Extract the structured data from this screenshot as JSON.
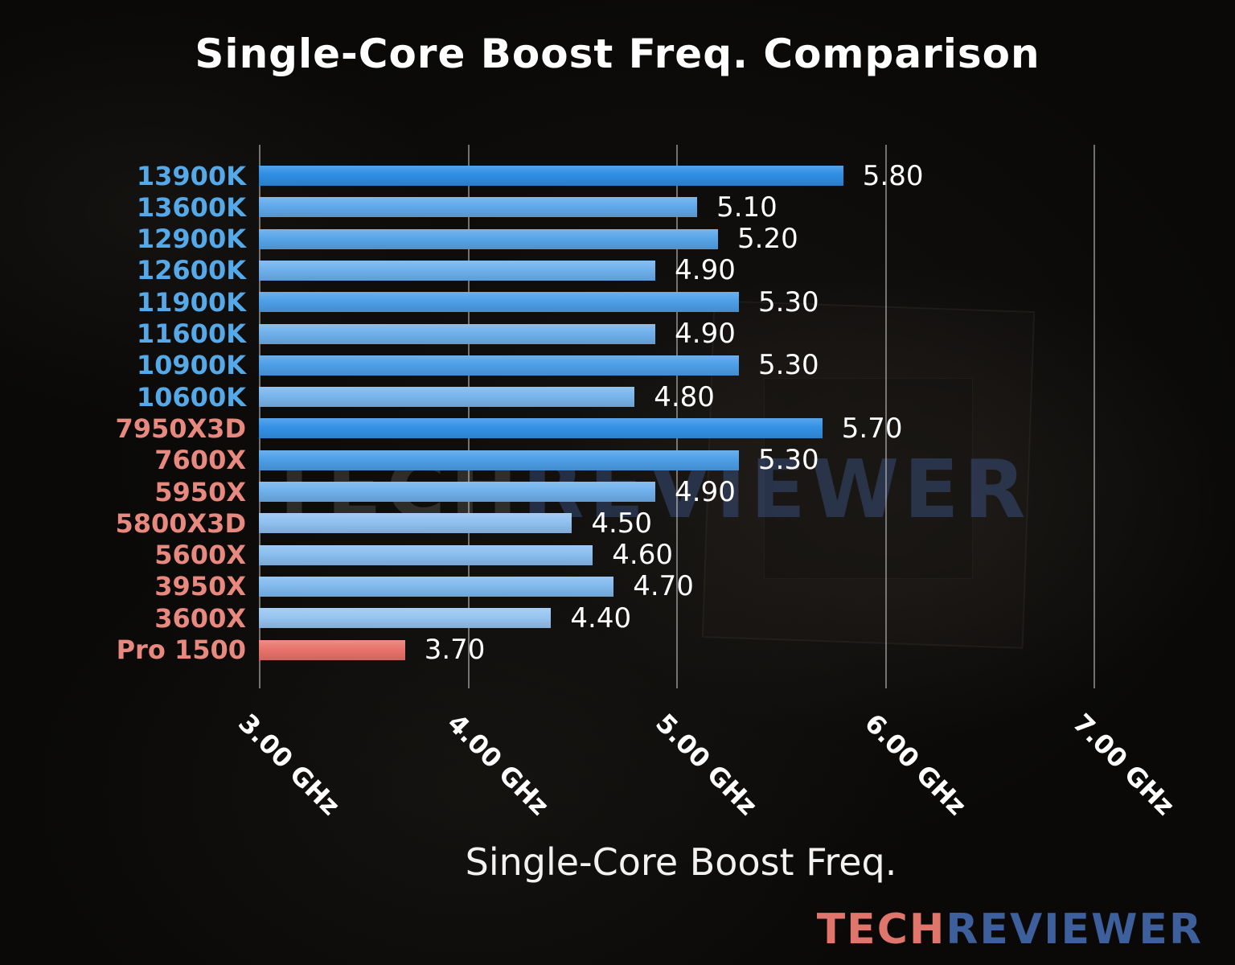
{
  "title": "Single-Core Boost Freq. Comparison",
  "chart_data": {
    "type": "bar",
    "orientation": "horizontal",
    "title": "Single-Core Boost Freq. Comparison",
    "xlabel": "Single-Core Boost Freq.",
    "ylabel": "",
    "xlim": [
      3.0,
      7.5
    ],
    "grid": true,
    "x_ticks": [
      {
        "value": 3.0,
        "label": "3.00 GHz"
      },
      {
        "value": 4.0,
        "label": "4.00 GHz"
      },
      {
        "value": 5.0,
        "label": "5.00 GHz"
      },
      {
        "value": 6.0,
        "label": "6.00 GHz"
      },
      {
        "value": 7.0,
        "label": "7.00 GHz"
      }
    ],
    "categories": [
      "13900K",
      "13600K",
      "12900K",
      "12600K",
      "11900K",
      "11600K",
      "10900K",
      "10600K",
      "7950X3D",
      "7600X",
      "5950X",
      "5800X3D",
      "5600X",
      "3950X",
      "3600X",
      "Pro 1500"
    ],
    "values": [
      5.8,
      5.1,
      5.2,
      4.9,
      5.3,
      4.9,
      5.3,
      4.8,
      5.7,
      5.3,
      4.9,
      4.5,
      4.6,
      4.7,
      4.4,
      3.7
    ],
    "value_labels": [
      "5.80",
      "5.10",
      "5.20",
      "4.90",
      "5.30",
      "4.90",
      "5.30",
      "4.80",
      "5.70",
      "5.30",
      "4.90",
      "4.50",
      "4.60",
      "4.70",
      "4.40",
      "3.70"
    ],
    "label_colors": [
      "#56a9e8",
      "#56a9e8",
      "#56a9e8",
      "#56a9e8",
      "#56a9e8",
      "#56a9e8",
      "#56a9e8",
      "#56a9e8",
      "#e8897f",
      "#e8897f",
      "#e8897f",
      "#e8897f",
      "#e8897f",
      "#e8897f",
      "#e8897f",
      "#e8897f"
    ],
    "bar_colors": [
      "#2e8ee5",
      "#60a9ea",
      "#58a5e9",
      "#6fb1ec",
      "#4d9fe8",
      "#6fb1ec",
      "#4d9fe8",
      "#79b6ed",
      "#3492e6",
      "#4d9fe8",
      "#6fb1ec",
      "#90c1f0",
      "#8abeef",
      "#82baee",
      "#97c5f0",
      "#e8746c"
    ]
  },
  "watermark_center": {
    "tech": "TECH",
    "reviewer": "REVIEWER"
  },
  "watermark_footer": {
    "tech": "TECH",
    "reviewer": "REVIEWER",
    "tech_color": "#e0756b",
    "reviewer_color": "#3d5f9b"
  },
  "colors": {
    "intel_label": "#56a9e8",
    "amd_label": "#e8897f",
    "grid": "#d7d7d7",
    "title_text": "#ffffff"
  }
}
